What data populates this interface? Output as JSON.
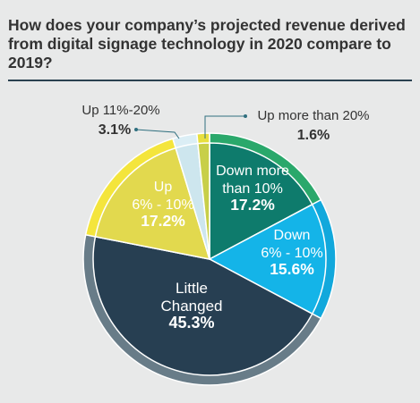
{
  "title": "How does your company’s projected revenue derived from digital signage technology in 2020 compare to 2019?",
  "chart_data": {
    "type": "pie",
    "slices": [
      {
        "name_lines": [
          "Down more",
          "than 10%"
        ],
        "value": 17.2,
        "value_label": "17.2%",
        "color": "#0e7b6c",
        "edge": "#2aa86b"
      },
      {
        "name_lines": [
          "Down",
          "6% - 10%"
        ],
        "value": 15.6,
        "value_label": "15.6%",
        "color": "#14b4e8",
        "edge": "#11a8dc"
      },
      {
        "name_lines": [
          "Little",
          "Changed"
        ],
        "value": 45.3,
        "value_label": "45.3%",
        "color": "#273f52",
        "edge": "#687c88"
      },
      {
        "name_lines": [
          "Up",
          "6% - 10%"
        ],
        "value": 17.2,
        "value_label": "17.2%",
        "color": "#e2d94e",
        "edge": "#f4e53c"
      },
      {
        "name_lines": [
          "Up 11%-20%"
        ],
        "value": 3.1,
        "value_label": "3.1%",
        "color": "#cde6ee",
        "edge": "#dbeef5"
      },
      {
        "name_lines": [
          "Up more than 20%"
        ],
        "value": 1.6,
        "value_label": "1.6%",
        "color": "#c8cf49",
        "edge": "#e8df3e"
      }
    ],
    "order": "clockwise from top",
    "label_color": "#ffffff",
    "callout_color": "#2f6f7f"
  }
}
